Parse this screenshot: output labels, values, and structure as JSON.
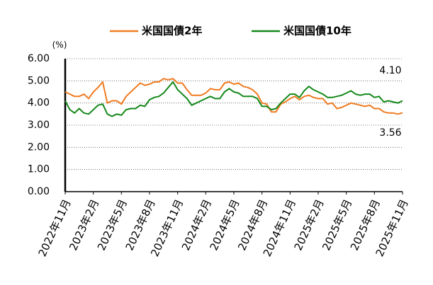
{
  "chart_data": {
    "type": "line",
    "y_unit_label": "(%)",
    "categories": [
      "2022年11月",
      null,
      null,
      null,
      null,
      null,
      "2023年2月",
      null,
      null,
      null,
      null,
      null,
      "2023年5月",
      null,
      null,
      null,
      null,
      null,
      "2023年8月",
      null,
      null,
      null,
      null,
      null,
      "2023年11月",
      null,
      null,
      null,
      null,
      null,
      "2024年2月",
      null,
      null,
      null,
      null,
      null,
      "2024年5月",
      null,
      null,
      null,
      null,
      null,
      "2024年8月",
      null,
      null,
      null,
      null,
      null,
      "2024年11月",
      null,
      null,
      null,
      null,
      null,
      "2025年2月",
      null,
      null,
      null,
      null,
      null,
      "2025年5月",
      null,
      null,
      null,
      null,
      null,
      "2025年8月",
      null,
      null,
      null,
      null,
      null,
      "2025年11月"
    ],
    "series": [
      {
        "name": "米国国債2年",
        "color": "#f07b21",
        "values": [
          4.5,
          4.4,
          4.3,
          4.3,
          4.4,
          4.2,
          4.5,
          4.7,
          4.95,
          4.0,
          4.1,
          4.1,
          3.95,
          4.3,
          4.5,
          4.7,
          4.9,
          4.8,
          4.85,
          4.95,
          4.95,
          5.1,
          5.05,
          5.1,
          4.9,
          4.9,
          4.6,
          4.35,
          4.35,
          4.35,
          4.45,
          4.65,
          4.6,
          4.6,
          4.9,
          4.95,
          4.85,
          4.9,
          4.75,
          4.7,
          4.6,
          4.4,
          4.0,
          3.95,
          3.6,
          3.6,
          3.95,
          4.05,
          4.2,
          4.3,
          4.15,
          4.3,
          4.35,
          4.25,
          4.2,
          4.2,
          3.95,
          4.0,
          3.75,
          3.8,
          3.9,
          4.0,
          3.95,
          3.9,
          3.85,
          3.9,
          3.75,
          3.75,
          3.6,
          3.55,
          3.55,
          3.5,
          3.56
        ]
      },
      {
        "name": "米国国債10年",
        "color": "#14891a",
        "values": [
          4.1,
          3.7,
          3.55,
          3.75,
          3.55,
          3.5,
          3.7,
          3.9,
          3.95,
          3.5,
          3.4,
          3.5,
          3.45,
          3.7,
          3.75,
          3.75,
          3.9,
          3.85,
          4.15,
          4.25,
          4.3,
          4.45,
          4.7,
          4.95,
          4.6,
          4.4,
          4.2,
          3.9,
          4.0,
          4.1,
          4.2,
          4.3,
          4.2,
          4.2,
          4.5,
          4.65,
          4.5,
          4.45,
          4.3,
          4.3,
          4.3,
          4.2,
          3.85,
          3.85,
          3.7,
          3.75,
          4.0,
          4.2,
          4.4,
          4.4,
          4.25,
          4.55,
          4.75,
          4.6,
          4.5,
          4.4,
          4.25,
          4.25,
          4.3,
          4.35,
          4.45,
          4.55,
          4.4,
          4.35,
          4.4,
          4.4,
          4.25,
          4.3,
          4.05,
          4.1,
          4.05,
          4.0,
          4.1
        ]
      }
    ],
    "annotations": [
      "4.10",
      "3.56"
    ],
    "ylim": [
      0,
      6
    ],
    "yticks": [
      {
        "value": 0,
        "label": "0.00"
      },
      {
        "value": 1,
        "label": "1.00"
      },
      {
        "value": 2,
        "label": "2.00"
      },
      {
        "value": 3,
        "label": "3.00"
      },
      {
        "value": 4,
        "label": "4.00"
      },
      {
        "value": 5,
        "label": "5.00"
      },
      {
        "value": 6,
        "label": "6.00"
      }
    ],
    "grid": true
  }
}
